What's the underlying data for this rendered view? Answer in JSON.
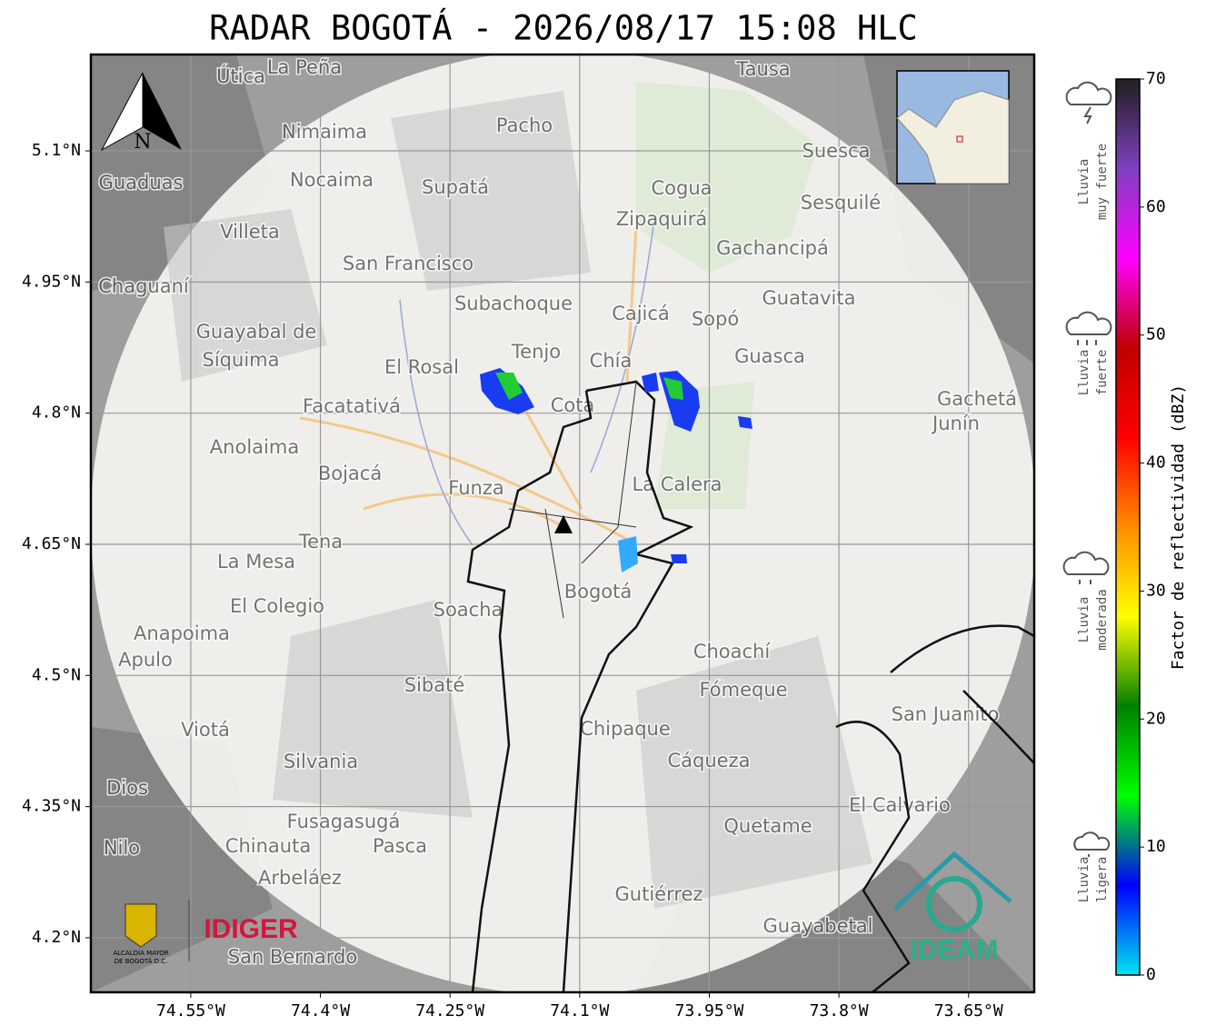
{
  "title": "RADAR BOGOTÁ - 2026/08/17 15:08 HLC",
  "map": {
    "lonlim": [
      -74.6656,
      -73.574
    ],
    "latlim": [
      4.1376,
      5.2102
    ],
    "lon_ticks": [
      {
        "value": -74.55,
        "label": "74.55°W"
      },
      {
        "value": -74.4,
        "label": "74.4°W"
      },
      {
        "value": -74.25,
        "label": "74.25°W"
      },
      {
        "value": -74.1,
        "label": "74.1°W"
      },
      {
        "value": -73.95,
        "label": "73.95°W"
      },
      {
        "value": -73.8,
        "label": "73.8°W"
      },
      {
        "value": -73.65,
        "label": "73.65°W"
      }
    ],
    "lat_ticks": [
      {
        "value": 5.1,
        "label": "5.1°N"
      },
      {
        "value": 4.95,
        "label": "4.95°N"
      },
      {
        "value": 4.8,
        "label": "4.8°N"
      },
      {
        "value": 4.65,
        "label": "4.65°N"
      },
      {
        "value": 4.5,
        "label": "4.5°N"
      },
      {
        "value": 4.35,
        "label": "4.35°N"
      },
      {
        "value": 4.2,
        "label": "4.2°N"
      }
    ],
    "north": "N",
    "places": [
      "La Peña",
      "Útica",
      "Tausa",
      "Pacho",
      "Nimaima",
      "Nocaima",
      "Supatá",
      "Guaduas",
      "Suesca",
      "Cogua",
      "Zipaquirá",
      "Sesquilé",
      "Villeta",
      "Gachancipá",
      "San Francisco",
      "Chaguaní",
      "Guatavita",
      "Subachoque",
      "Cajicá",
      "Sopó",
      "Guayabal de",
      "Síquima",
      "Tenjo",
      "Chía",
      "Guasca",
      "El Rosal",
      "Cota",
      "Facatativá",
      "Gachetá",
      "Junín",
      "Anolaima",
      "Bojacá",
      "Funza",
      "La Calera",
      "Tena",
      "La Mesa",
      "Bogotá",
      "Soacha",
      "El Colegio",
      "Anapoima",
      "Apulo",
      "Choachí",
      "Sibaté",
      "Fómeque",
      "Viotá",
      "Chipaque",
      "San Juanito",
      "Silvania",
      "Cáqueza",
      "El Calvario",
      "Fusagasugá",
      "Quetame",
      "Chinauta",
      "Pasca",
      "Nilo",
      "Arbeláez",
      "Gutiérrez",
      "Guayabetal",
      "San Bernardo",
      "Dios"
    ]
  },
  "colorbar": {
    "label": "Factor de reflectividad (dBZ)",
    "lim": [
      0,
      70
    ],
    "ticks": [
      0,
      10,
      20,
      30,
      40,
      50,
      60,
      70
    ],
    "colors": [
      "#00e6f0",
      "#0000ff",
      "#00ff00",
      "#008000",
      "#ffff00",
      "#ff8c00",
      "#ff0000",
      "#c00000",
      "#ff00ff",
      "#8040c0",
      "#202020"
    ]
  },
  "legend": [
    [
      "Lluvia",
      "muy fuerte"
    ],
    [
      "Lluvia",
      "fuerte"
    ],
    [
      "Lluvia",
      "moderada"
    ],
    [
      "Lluvia",
      "ligera"
    ]
  ],
  "logos": {
    "alcaldia_1": "ALCALDÍA MAYOR",
    "alcaldia_2": "DE BOGOTÁ D.C.",
    "idiger": "IDIGER",
    "ideam": "IDEAM"
  }
}
